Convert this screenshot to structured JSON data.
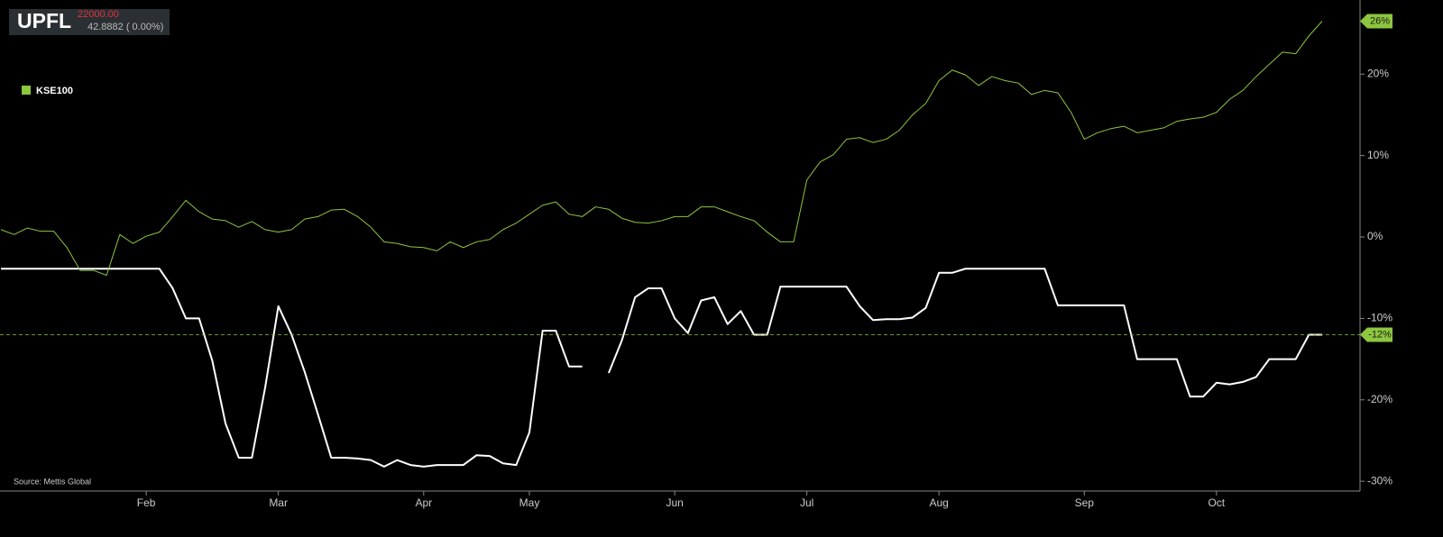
{
  "chart_data": {
    "type": "line",
    "price": "22000.00",
    "change": "42.8882 ( 0.00%)",
    "source": "Source: Mettis Global",
    "categories": [
      null,
      null,
      null,
      null,
      null,
      null,
      null,
      null,
      null,
      null,
      null,
      "Feb",
      null,
      null,
      null,
      null,
      null,
      null,
      null,
      null,
      null,
      "Mar",
      null,
      null,
      null,
      null,
      null,
      null,
      null,
      null,
      null,
      null,
      "Apr",
      null,
      null,
      null,
      null,
      null,
      null,
      null,
      "May",
      null,
      null,
      null,
      null,
      null,
      null,
      null,
      null,
      null,
      null,
      "Jun",
      null,
      null,
      null,
      null,
      null,
      null,
      null,
      null,
      null,
      "Jul",
      null,
      null,
      null,
      null,
      null,
      null,
      null,
      null,
      null,
      "Aug",
      null,
      null,
      null,
      null,
      null,
      null,
      null,
      null,
      null,
      null,
      "Sep",
      null,
      null,
      null,
      null,
      null,
      null,
      null,
      null,
      null,
      "Oct",
      null,
      null,
      null,
      null,
      null,
      null,
      null,
      null
    ],
    "series": [
      {
        "name": "UPFL",
        "color": "#ffffff",
        "values": [
          -3.9,
          -3.9,
          -3.9,
          -3.9,
          -3.9,
          -3.9,
          -3.9,
          -3.9,
          -3.9,
          -3.9,
          -3.9,
          -3.9,
          -3.9,
          -6.3,
          -10.0,
          -10.0,
          -15.2,
          -22.9,
          -27.1,
          -27.1,
          -18.5,
          -8.5,
          -12.0,
          -16.6,
          -21.8,
          -27.1,
          -27.1,
          -27.2,
          -27.4,
          -28.2,
          -27.4,
          -28.0,
          -28.2,
          -28.0,
          -28.0,
          -28.0,
          -26.8,
          -26.9,
          -27.8,
          -28.0,
          -24.0,
          -11.5,
          -11.5,
          -15.9,
          -15.9,
          null,
          -16.7,
          -12.7,
          -7.4,
          -6.3,
          -6.3,
          -10.0,
          -11.8,
          -7.8,
          -7.4,
          -10.7,
          -9.1,
          -12.0,
          -12.0,
          -6.1,
          -6.1,
          -6.1,
          -6.1,
          -6.1,
          -6.1,
          -8.5,
          -10.2,
          -10.1,
          -10.1,
          -9.9,
          -8.7,
          -4.4,
          -4.4,
          -3.9,
          -3.9,
          -3.9,
          -3.9,
          -3.9,
          -3.9,
          -3.9,
          -8.4,
          -8.4,
          -8.4,
          -8.4,
          -8.4,
          -8.4,
          -15.0,
          -15.0,
          -15.0,
          -15.0,
          -19.6,
          -19.6,
          -17.9,
          -18.1,
          -17.8,
          -17.2,
          -15.0,
          -15.0,
          -15.0,
          -12.0,
          -12.0
        ],
        "value_labels": [
          null,
          null,
          null,
          null,
          null,
          null,
          null,
          null,
          null,
          null,
          null,
          null,
          null,
          null,
          null,
          null,
          null,
          null,
          null,
          null,
          null,
          null,
          null,
          null,
          null,
          null,
          null,
          null,
          null,
          null,
          null,
          null,
          null,
          null,
          null,
          null,
          null,
          null,
          null,
          null,
          null,
          null,
          null,
          null,
          null,
          null,
          null,
          null,
          null,
          null,
          null,
          null,
          null,
          null,
          null,
          null,
          null,
          null,
          null,
          null,
          null,
          null,
          null,
          null,
          null,
          null,
          null,
          null,
          null,
          null,
          null,
          null,
          null,
          null,
          null,
          null,
          null,
          null,
          null,
          null,
          null,
          null,
          null,
          null,
          null,
          null,
          null,
          null,
          null,
          null,
          null,
          null,
          null,
          null,
          null,
          null,
          null,
          null,
          null,
          null,
          "-12%"
        ]
      },
      {
        "name": "KSE100",
        "color": "#8dc63f",
        "values": [
          0.9,
          0.3,
          1.1,
          0.7,
          0.7,
          -1.3,
          -4.1,
          -4.1,
          -4.7,
          0.3,
          -0.8,
          0.1,
          0.6,
          2.5,
          4.5,
          3.1,
          2.2,
          2.0,
          1.2,
          1.9,
          0.9,
          0.6,
          0.9,
          2.2,
          2.5,
          3.3,
          3.4,
          2.5,
          1.2,
          -0.6,
          -0.8,
          -1.2,
          -1.3,
          -1.7,
          -0.6,
          -1.3,
          -0.6,
          -0.3,
          0.9,
          1.7,
          2.8,
          3.9,
          4.3,
          2.8,
          2.5,
          3.7,
          3.4,
          2.3,
          1.8,
          1.7,
          2.0,
          2.5,
          2.5,
          3.7,
          3.7,
          3.1,
          2.5,
          2.0,
          0.6,
          -0.6,
          -0.6,
          7.0,
          9.2,
          10.1,
          12.0,
          12.2,
          11.6,
          12.0,
          13.1,
          15.0,
          16.4,
          19.2,
          20.5,
          19.9,
          18.6,
          19.7,
          19.2,
          18.9,
          17.5,
          18.0,
          17.7,
          15.3,
          12.0,
          12.8,
          13.3,
          13.6,
          12.8,
          13.1,
          13.4,
          14.2,
          14.5,
          14.7,
          15.3,
          16.9,
          18.0,
          19.7,
          21.2,
          22.7,
          22.5,
          24.7,
          26.5
        ],
        "value_labels": [
          null,
          null,
          null,
          null,
          null,
          null,
          null,
          null,
          null,
          null,
          null,
          null,
          null,
          null,
          null,
          null,
          null,
          null,
          null,
          null,
          null,
          null,
          null,
          null,
          null,
          null,
          null,
          null,
          null,
          null,
          null,
          null,
          null,
          null,
          null,
          null,
          null,
          null,
          null,
          null,
          null,
          null,
          null,
          null,
          null,
          null,
          null,
          null,
          null,
          null,
          null,
          null,
          null,
          null,
          null,
          null,
          null,
          null,
          null,
          null,
          null,
          null,
          null,
          null,
          null,
          null,
          null,
          null,
          null,
          null,
          null,
          null,
          null,
          null,
          null,
          null,
          null,
          null,
          null,
          null,
          null,
          null,
          null,
          null,
          null,
          null,
          null,
          null,
          null,
          null,
          null,
          null,
          null,
          null,
          null,
          null,
          null,
          null,
          null,
          null,
          "26%"
        ]
      }
    ],
    "ylim": [
      -31.2,
      29.1
    ],
    "yticks": [
      {
        "value": 20,
        "label": "20%"
      },
      {
        "value": 10,
        "label": "10%"
      },
      {
        "value": 0,
        "label": "0%"
      },
      {
        "value": -10,
        "label": "-10%"
      },
      {
        "value": -20,
        "label": "-20%"
      },
      {
        "value": -30,
        "label": "-30%"
      }
    ]
  }
}
